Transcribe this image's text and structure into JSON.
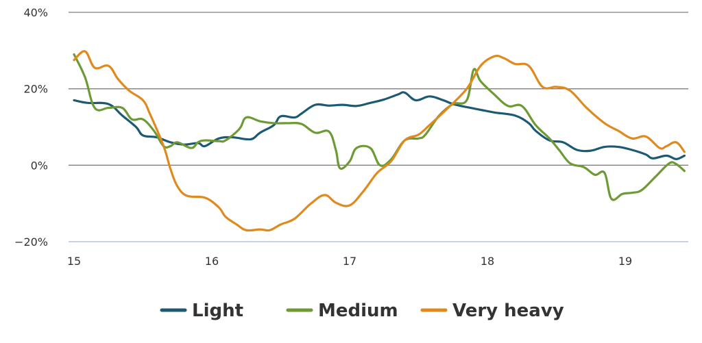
{
  "chart_data": {
    "type": "line",
    "title": "",
    "xlabel": "",
    "ylabel": "",
    "xlim": [
      15,
      19.45
    ],
    "ylim": [
      -20,
      40
    ],
    "x_ticks": [
      {
        "value": 15,
        "label": "15"
      },
      {
        "value": 16,
        "label": "16"
      },
      {
        "value": 17,
        "label": "17"
      },
      {
        "value": 18,
        "label": "18"
      },
      {
        "value": 19,
        "label": "19"
      }
    ],
    "y_ticks": [
      {
        "value": 40,
        "label": "40%"
      },
      {
        "value": 20,
        "label": "20%"
      },
      {
        "value": 0,
        "label": "0%"
      },
      {
        "value": -20,
        "label": "−20%"
      }
    ],
    "grid": true,
    "legend_position": "bottom-center",
    "series": [
      {
        "name": "Light",
        "color": "#1b5a72",
        "points": [
          [
            15.0,
            17
          ],
          [
            15.1,
            16.3
          ],
          [
            15.25,
            16.0
          ],
          [
            15.35,
            13
          ],
          [
            15.45,
            10
          ],
          [
            15.5,
            7.8
          ],
          [
            15.6,
            7.3
          ],
          [
            15.7,
            6.0
          ],
          [
            15.8,
            5.4
          ],
          [
            15.9,
            5.8
          ],
          [
            15.95,
            5.0
          ],
          [
            16.05,
            7.0
          ],
          [
            16.15,
            7.3
          ],
          [
            16.25,
            6.8
          ],
          [
            16.3,
            7.0
          ],
          [
            16.35,
            8.5
          ],
          [
            16.45,
            10.5
          ],
          [
            16.5,
            12.8
          ],
          [
            16.6,
            12.5
          ],
          [
            16.65,
            13.5
          ],
          [
            16.75,
            15.8
          ],
          [
            16.85,
            15.6
          ],
          [
            16.95,
            15.8
          ],
          [
            17.05,
            15.5
          ],
          [
            17.15,
            16.3
          ],
          [
            17.25,
            17.2
          ],
          [
            17.35,
            18.5
          ],
          [
            17.4,
            19.0
          ],
          [
            17.48,
            17.0
          ],
          [
            17.58,
            18.0
          ],
          [
            17.68,
            17.0
          ],
          [
            17.75,
            16.0
          ],
          [
            17.85,
            15.2
          ],
          [
            17.95,
            14.5
          ],
          [
            18.05,
            13.8
          ],
          [
            18.2,
            13.0
          ],
          [
            18.3,
            11.0
          ],
          [
            18.35,
            9.0
          ],
          [
            18.45,
            6.5
          ],
          [
            18.55,
            6.0
          ],
          [
            18.65,
            4.0
          ],
          [
            18.75,
            3.8
          ],
          [
            18.85,
            4.8
          ],
          [
            18.95,
            4.8
          ],
          [
            19.05,
            4.0
          ],
          [
            19.15,
            2.8
          ],
          [
            19.2,
            1.8
          ],
          [
            19.3,
            2.5
          ],
          [
            19.37,
            1.6
          ],
          [
            19.43,
            2.5
          ]
        ]
      },
      {
        "name": "Medium",
        "color": "#6e9a35",
        "points": [
          [
            15.0,
            29
          ],
          [
            15.08,
            23
          ],
          [
            15.15,
            15.0
          ],
          [
            15.25,
            15.0
          ],
          [
            15.35,
            15.0
          ],
          [
            15.42,
            12.0
          ],
          [
            15.5,
            12.0
          ],
          [
            15.58,
            9.0
          ],
          [
            15.65,
            5.0
          ],
          [
            15.7,
            5.0
          ],
          [
            15.75,
            6.0
          ],
          [
            15.85,
            4.5
          ],
          [
            15.9,
            6.0
          ],
          [
            15.95,
            6.5
          ],
          [
            16.05,
            6.3
          ],
          [
            16.1,
            6.5
          ],
          [
            16.2,
            9.5
          ],
          [
            16.25,
            12.5
          ],
          [
            16.35,
            11.5
          ],
          [
            16.45,
            11.0
          ],
          [
            16.55,
            11.0
          ],
          [
            16.65,
            10.8
          ],
          [
            16.75,
            8.5
          ],
          [
            16.85,
            8.8
          ],
          [
            16.9,
            4.0
          ],
          [
            16.93,
            -0.8
          ],
          [
            17.0,
            1.0
          ],
          [
            17.05,
            4.5
          ],
          [
            17.15,
            4.5
          ],
          [
            17.22,
            0
          ],
          [
            17.3,
            1.5
          ],
          [
            17.4,
            6.5
          ],
          [
            17.5,
            7.0
          ],
          [
            17.55,
            8.0
          ],
          [
            17.65,
            13.0
          ],
          [
            17.75,
            16.0
          ],
          [
            17.85,
            17.0
          ],
          [
            17.9,
            25.0
          ],
          [
            17.95,
            22.0
          ],
          [
            18.05,
            18.5
          ],
          [
            18.15,
            15.5
          ],
          [
            18.25,
            15.5
          ],
          [
            18.35,
            10.5
          ],
          [
            18.45,
            7.0
          ],
          [
            18.52,
            4.0
          ],
          [
            18.6,
            0.5
          ],
          [
            18.7,
            -0.5
          ],
          [
            18.78,
            -2.5
          ],
          [
            18.85,
            -2.0
          ],
          [
            18.9,
            -8.8
          ],
          [
            18.98,
            -7.5
          ],
          [
            19.05,
            -7.2
          ],
          [
            19.12,
            -6.5
          ],
          [
            19.22,
            -3.0
          ],
          [
            19.32,
            0.5
          ],
          [
            19.37,
            0.3
          ],
          [
            19.43,
            -1.5
          ]
        ]
      },
      {
        "name": "Very heavy",
        "color": "#e08a1e",
        "points": [
          [
            15.0,
            27.5
          ],
          [
            15.08,
            29.8
          ],
          [
            15.15,
            25.5
          ],
          [
            15.25,
            26.0
          ],
          [
            15.32,
            22.5
          ],
          [
            15.4,
            19.5
          ],
          [
            15.5,
            17.0
          ],
          [
            15.55,
            13.5
          ],
          [
            15.65,
            5.0
          ],
          [
            15.7,
            -1.0
          ],
          [
            15.75,
            -5.5
          ],
          [
            15.82,
            -8.0
          ],
          [
            15.95,
            -8.5
          ],
          [
            16.05,
            -11.0
          ],
          [
            16.1,
            -13.5
          ],
          [
            16.18,
            -15.5
          ],
          [
            16.25,
            -17.0
          ],
          [
            16.35,
            -16.8
          ],
          [
            16.42,
            -17.0
          ],
          [
            16.5,
            -15.5
          ],
          [
            16.6,
            -14.0
          ],
          [
            16.72,
            -10.0
          ],
          [
            16.82,
            -7.8
          ],
          [
            16.9,
            -9.8
          ],
          [
            17.0,
            -10.5
          ],
          [
            17.1,
            -6.8
          ],
          [
            17.2,
            -2.0
          ],
          [
            17.3,
            1.0
          ],
          [
            17.4,
            6.5
          ],
          [
            17.5,
            8.0
          ],
          [
            17.58,
            10.5
          ],
          [
            17.7,
            14.5
          ],
          [
            17.85,
            20.0
          ],
          [
            17.95,
            26.0
          ],
          [
            18.05,
            28.5
          ],
          [
            18.12,
            28.0
          ],
          [
            18.2,
            26.5
          ],
          [
            18.3,
            26.0
          ],
          [
            18.4,
            20.5
          ],
          [
            18.5,
            20.5
          ],
          [
            18.6,
            19.5
          ],
          [
            18.72,
            15.0
          ],
          [
            18.85,
            11.0
          ],
          [
            18.95,
            9.0
          ],
          [
            19.05,
            7.0
          ],
          [
            19.15,
            7.5
          ],
          [
            19.25,
            4.5
          ],
          [
            19.3,
            5.0
          ],
          [
            19.37,
            6.0
          ],
          [
            19.43,
            3.5
          ]
        ]
      }
    ]
  }
}
